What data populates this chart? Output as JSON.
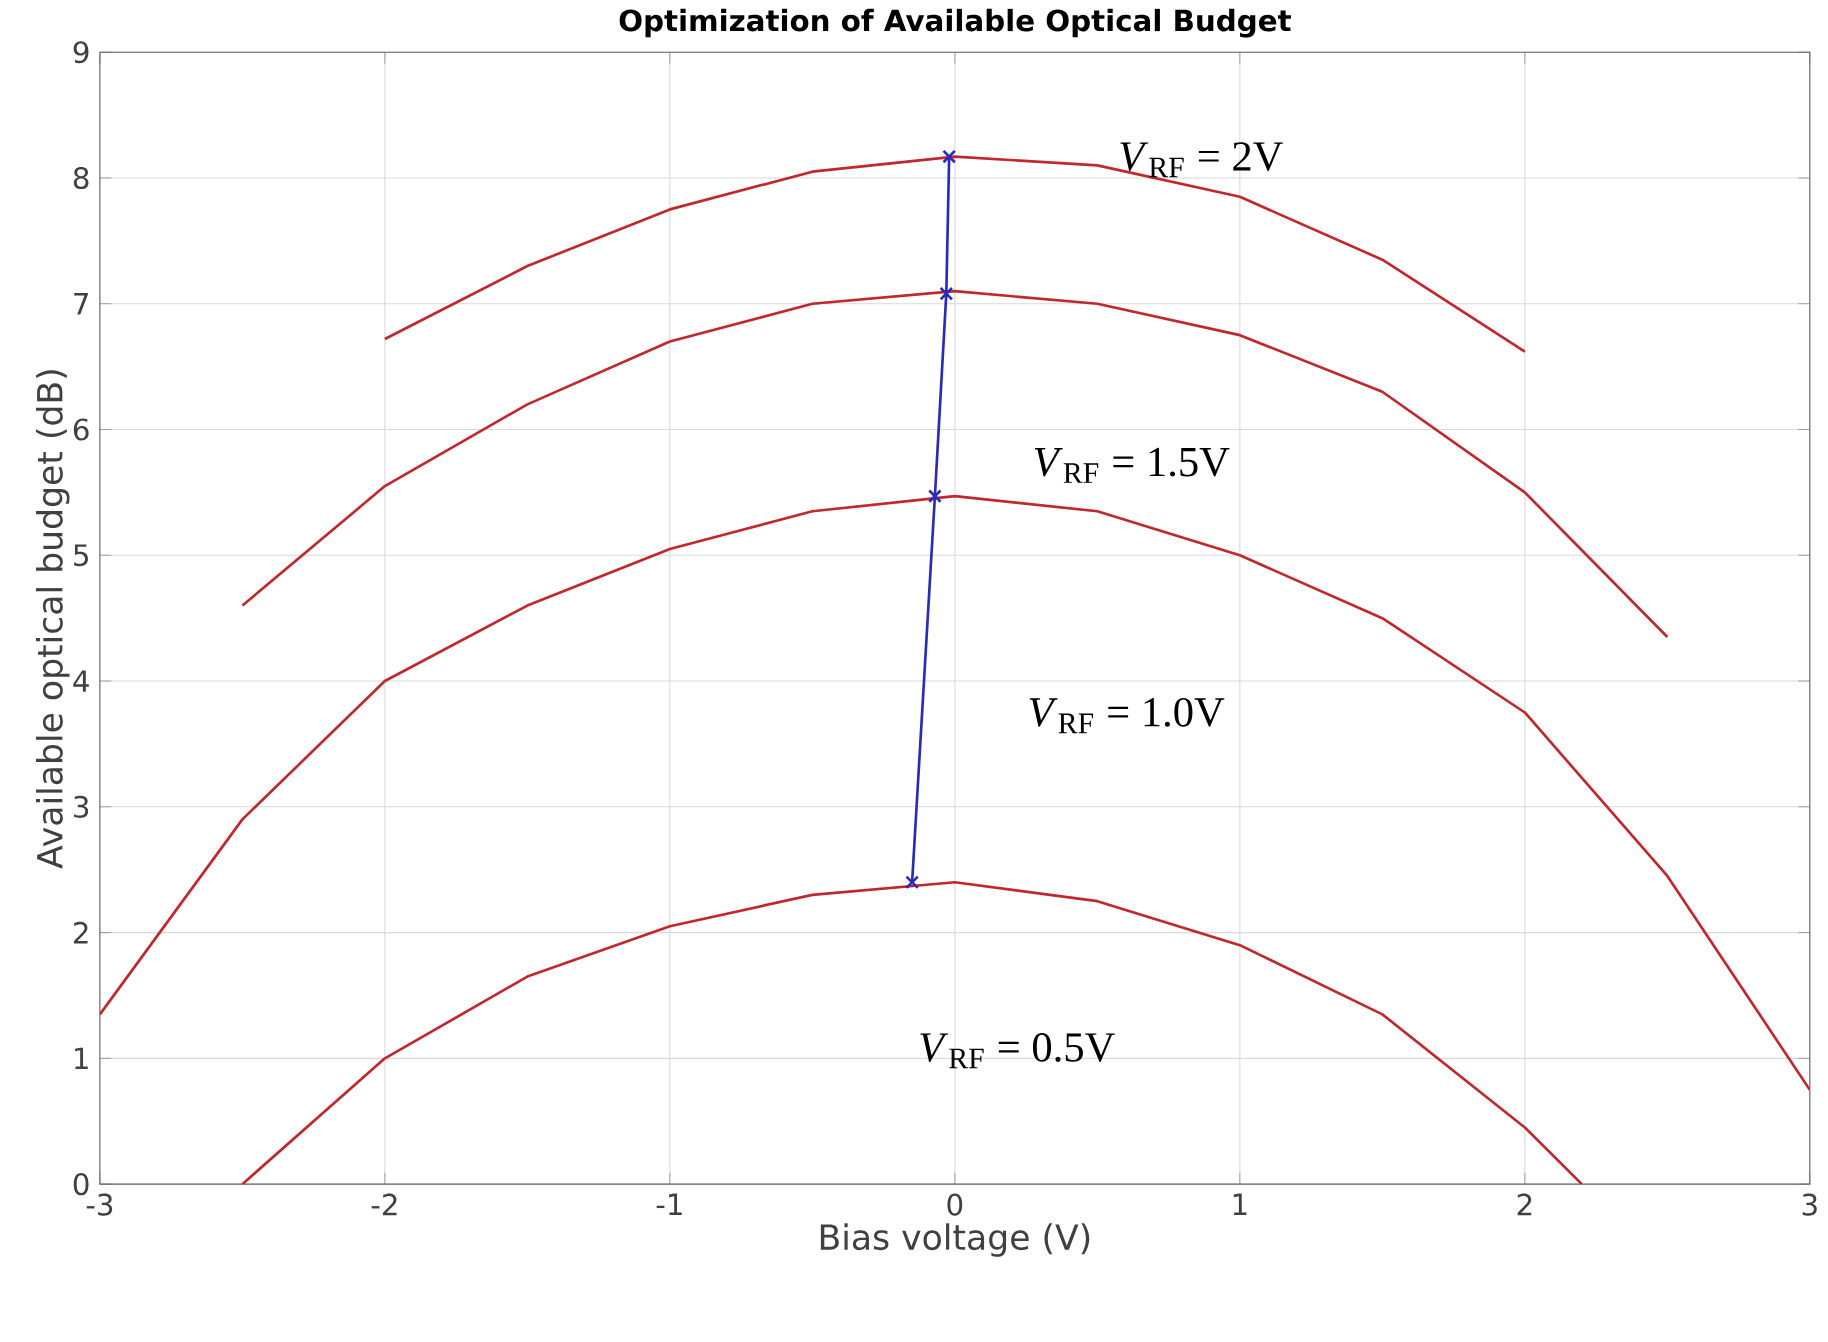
{
  "chart_data": {
    "type": "line",
    "title": "Optimization of Available Optical Budget",
    "xlabel": "Bias voltage (V)",
    "ylabel": "Available optical budget (dB)",
    "xlim": [
      -3,
      3
    ],
    "ylim": [
      0,
      9
    ],
    "xticks": [
      -3,
      -2,
      -1,
      0,
      1,
      2,
      3
    ],
    "yticks": [
      0,
      1,
      2,
      3,
      4,
      5,
      6,
      7,
      8,
      9
    ],
    "grid": true,
    "series": [
      {
        "color": "#c0282d",
        "x": [
          -2,
          -1.5,
          -1,
          -0.5,
          0,
          0.5,
          1,
          1.5,
          2
        ],
        "values": [
          6.72,
          7.3,
          7.75,
          8.05,
          8.17,
          8.1,
          7.85,
          7.35,
          6.62
        ]
      },
      {
        "color": "#c0282d",
        "x": [
          -2.5,
          -2,
          -1.5,
          -1,
          -0.5,
          0,
          0.5,
          1,
          1.5,
          2,
          2.5
        ],
        "values": [
          4.6,
          5.55,
          6.2,
          6.7,
          7.0,
          7.1,
          7.0,
          6.75,
          6.3,
          5.5,
          4.35
        ]
      },
      {
        "color": "#c0282d",
        "x": [
          -3,
          -2.5,
          -2,
          -1.5,
          -1,
          -0.5,
          0,
          0.5,
          1,
          1.5,
          2,
          2.5,
          3
        ],
        "values": [
          1.35,
          2.9,
          4.0,
          4.6,
          5.05,
          5.35,
          5.47,
          5.35,
          5.0,
          4.5,
          3.75,
          2.45,
          0.75
        ]
      },
      {
        "color": "#c0282d",
        "x": [
          -2.5,
          -2,
          -1.5,
          -1,
          -0.5,
          0,
          0.5,
          1,
          1.5,
          2,
          2.2
        ],
        "values": [
          0,
          1.0,
          1.65,
          2.05,
          2.3,
          2.4,
          2.25,
          1.9,
          1.35,
          0.45,
          0
        ]
      },
      {
        "color": "#2b2bb8",
        "marker": "cross",
        "x": [
          -0.15,
          -0.07,
          -0.03,
          -0.02
        ],
        "values": [
          2.4,
          5.47,
          7.08,
          8.17
        ]
      }
    ],
    "annotations": [
      "*V*$_{RF}$ = 2V",
      "*V*$_{RF}$ = 1.5V",
      "*V*$_{RF}$ = 1.0V",
      "*V*$_{RF}$ = 0.5V"
    ]
  }
}
